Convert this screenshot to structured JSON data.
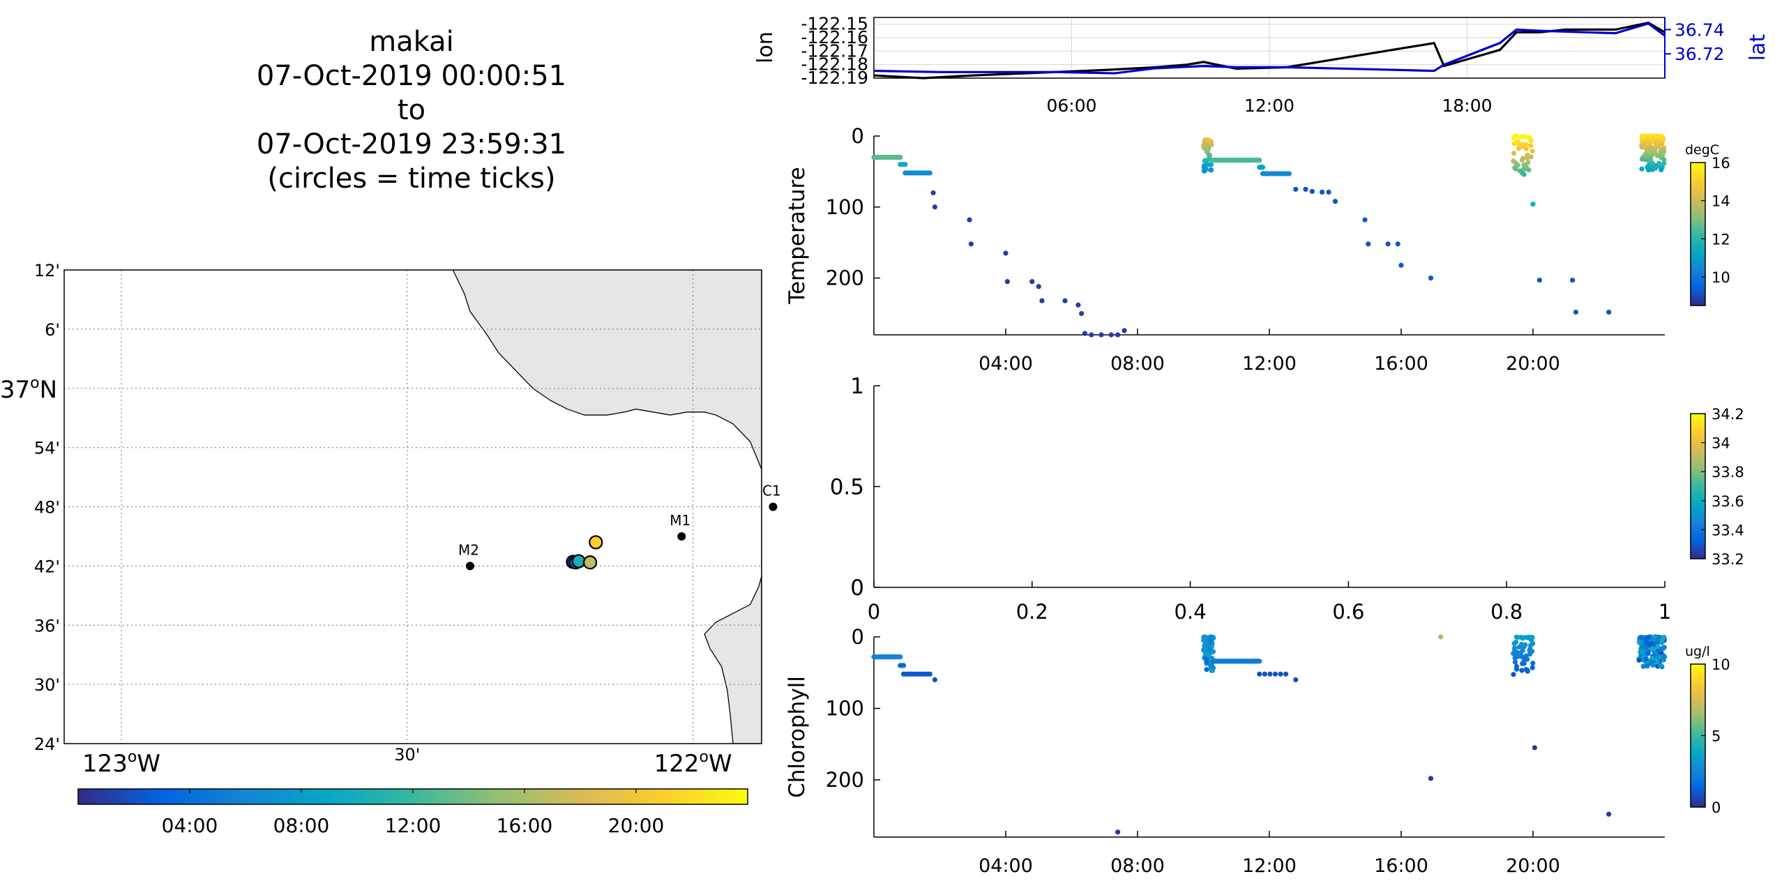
{
  "header": {
    "title_lines": [
      "makai",
      "07-Oct-2019 00:00:51",
      "to",
      "07-Oct-2019 23:59:31",
      "(circles = time ticks)"
    ]
  },
  "colors": {
    "lon_line": "#000000",
    "lat_line": "#0000cc",
    "land": "#e6e6e6",
    "parula": [
      "#352a87",
      "#0363e1",
      "#1485d4",
      "#06a7c6",
      "#38b99e",
      "#92bf73",
      "#d9ba56",
      "#fcce2e",
      "#f9fb0e"
    ]
  },
  "chart_data": [
    {
      "id": "lonlat",
      "type": "line",
      "ylabel": "lon",
      "ylabel_right": "lat",
      "x_ticks": [
        "06:00",
        "12:00",
        "18:00"
      ],
      "y_ticks": [
        "-122.15",
        "-122.16",
        "-122.17",
        "-122.18",
        "-122.19"
      ],
      "y_ticks_right": [
        "36.74",
        "36.72"
      ],
      "xlim_hours": [
        0,
        24
      ],
      "ylim": [
        -122.19,
        -122.145
      ],
      "ylim_right": [
        36.7,
        36.75
      ],
      "series": [
        {
          "color": "#000000",
          "x": [
            0,
            1.5,
            3,
            5,
            7,
            8.5,
            9.5,
            10,
            11,
            12.5,
            14,
            15.5,
            17,
            17.3,
            19,
            19.5,
            20.2,
            21,
            22.5,
            23.5,
            24
          ],
          "y": [
            -122.188,
            -122.19,
            -122.188,
            -122.186,
            -122.184,
            -122.182,
            -122.18,
            -122.178,
            -122.183,
            -122.182,
            -122.176,
            -122.17,
            -122.164,
            -122.181,
            -122.169,
            -122.156,
            -122.156,
            -122.154,
            -122.154,
            -122.149,
            -122.156
          ]
        },
        {
          "color": "#0000cc",
          "x": [
            0,
            2,
            4,
            5.5,
            7.3,
            8.5,
            10,
            11,
            12.5,
            14,
            15.5,
            17,
            17.3,
            19,
            19.5,
            20.2,
            22.5,
            23.5,
            24
          ],
          "y": [
            36.706,
            36.705,
            36.705,
            36.705,
            36.704,
            36.708,
            36.71,
            36.709,
            36.709,
            36.708,
            36.707,
            36.706,
            36.711,
            36.729,
            36.74,
            36.739,
            36.737,
            36.745,
            36.735
          ]
        }
      ]
    },
    {
      "id": "temperature",
      "type": "scatter",
      "ylabel": "Temperature",
      "x_ticks": [
        "04:00",
        "08:00",
        "12:00",
        "16:00",
        "20:00"
      ],
      "y_ticks": [
        "0",
        "100",
        "200"
      ],
      "xlim_hours": [
        0,
        24
      ],
      "ylim": [
        0,
        280
      ],
      "colorbar": {
        "label": "degC",
        "ticks": [
          "16",
          "14",
          "12",
          "10"
        ],
        "range": [
          8.5,
          16
        ]
      }
    },
    {
      "id": "salinity",
      "type": "scatter",
      "x_ticks": [
        "0",
        "0.2",
        "0.4",
        "0.6",
        "0.8",
        "1"
      ],
      "y_ticks": [
        "1",
        "0.5",
        "0"
      ],
      "xlim": [
        0,
        1
      ],
      "ylim": [
        0,
        1
      ],
      "colorbar": {
        "label": "",
        "ticks": [
          "34.2",
          "34",
          "33.8",
          "33.6",
          "33.4",
          "33.2"
        ],
        "range": [
          33.2,
          34.2
        ]
      }
    },
    {
      "id": "chlorophyll",
      "type": "scatter",
      "ylabel": "Chlorophyll",
      "x_ticks": [
        "04:00",
        "08:00",
        "12:00",
        "16:00",
        "20:00"
      ],
      "y_ticks": [
        "0",
        "100",
        "200"
      ],
      "xlim_hours": [
        0,
        24
      ],
      "ylim": [
        0,
        280
      ],
      "colorbar": {
        "label": "ug/l",
        "ticks": [
          "10",
          "5",
          "0"
        ],
        "range": [
          0,
          10
        ]
      }
    },
    {
      "id": "map",
      "type": "scatter",
      "lat_ticks": [
        "12'",
        "6'",
        "37°N",
        "54'",
        "48'",
        "42'",
        "36'",
        "30'",
        "24'"
      ],
      "lon_ticks": [
        "123°W",
        "30'",
        "122°W"
      ],
      "lat_range": [
        36.4,
        37.2
      ],
      "lon_range": [
        -123.1,
        -121.88
      ],
      "moorings": [
        {
          "name": "M2",
          "lat": 36.7,
          "lon": -122.39
        },
        {
          "name": "M1",
          "lat": 36.75,
          "lon": -122.02
        },
        {
          "name": "C1",
          "lat": 36.8,
          "lon": -121.86
        }
      ],
      "track_points": [
        {
          "lat": 36.707,
          "lon": -122.21,
          "hour": 0
        },
        {
          "lat": 36.706,
          "lon": -122.205,
          "hour": 4
        },
        {
          "lat": 36.708,
          "lon": -122.2,
          "hour": 10
        },
        {
          "lat": 36.706,
          "lon": -122.18,
          "hour": 17
        },
        {
          "lat": 36.74,
          "lon": -122.17,
          "hour": 21
        }
      ],
      "colorbar": {
        "ticks": [
          "04:00",
          "08:00",
          "12:00",
          "16:00",
          "20:00"
        ],
        "range_hours": [
          0,
          24
        ]
      }
    }
  ]
}
